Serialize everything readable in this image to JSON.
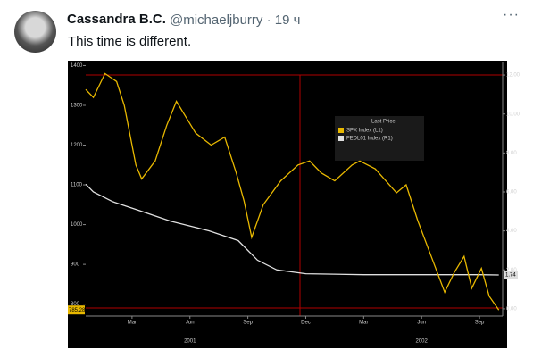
{
  "tweet": {
    "name": "Cassandra B.C.",
    "handle": "@michaeljburry · 19 ч",
    "text": "This time is different."
  },
  "chart_data": {
    "type": "line",
    "series": [
      {
        "name": "SPX Index (L1)",
        "color": "#e8b800",
        "axis": "y",
        "x": [
          -0.4,
          0,
          0.6,
          1.2,
          1.6,
          2.2,
          2.5,
          3.2,
          3.8,
          4.3,
          4.8,
          5.3,
          6.1,
          6.8,
          7.4,
          7.8,
          8.2,
          8.8,
          9.7,
          10.6,
          11.2,
          11.8,
          12.5,
          13.4,
          13.8,
          14.6,
          15.7,
          16.2,
          16.8,
          17.5,
          18.2,
          18.7,
          19.2,
          19.6,
          20.1,
          20.5,
          21.0
        ],
        "values": [
          1340,
          1320,
          1380,
          1360,
          1300,
          1150,
          1115,
          1160,
          1250,
          1310,
          1270,
          1230,
          1200,
          1220,
          1130,
          1060,
          968,
          1050,
          1110,
          1150,
          1160,
          1130,
          1110,
          1150,
          1160,
          1140,
          1080,
          1100,
          1010,
          920,
          830,
          880,
          920,
          840,
          890,
          820,
          785.28
        ]
      },
      {
        "name": "FEDL01 Index (R1)",
        "color": "#e0e0e0",
        "axis": "y2",
        "x": [
          -0.4,
          0,
          1,
          2.5,
          4,
          6,
          7.5,
          8.5,
          9.5,
          11,
          14,
          17,
          20,
          21.0
        ],
        "values": [
          6.4,
          6.0,
          5.5,
          5.0,
          4.5,
          4.0,
          3.5,
          2.5,
          2.0,
          1.8,
          1.75,
          1.75,
          1.75,
          1.74
        ]
      }
    ],
    "legend_title": "Last Price",
    "last_labels": {
      "y": "785.28",
      "y2": "1.74"
    },
    "xlim": [
      -0.4,
      21.2
    ],
    "xticks": [
      {
        "value": 2,
        "label": "Mar"
      },
      {
        "value": 5,
        "label": "Jun"
      },
      {
        "value": 8,
        "label": "Sep"
      },
      {
        "value": 11,
        "label": "Dec"
      },
      {
        "value": 14,
        "label": "Mar"
      },
      {
        "value": 17,
        "label": "Jun"
      },
      {
        "value": 20,
        "label": "Sep"
      }
    ],
    "years": [
      {
        "value": 5,
        "label": "2001"
      },
      {
        "value": 17,
        "label": "2002"
      }
    ],
    "ylim": [
      770,
      1410
    ],
    "yticks": [
      800,
      900,
      1000,
      1100,
      1200,
      1300,
      1400
    ],
    "y2lim": [
      -0.37,
      12.69
    ],
    "y2ticks": [
      {
        "value": 0,
        "label": "0.00"
      },
      {
        "value": 2,
        "label": "2.00"
      },
      {
        "value": 4,
        "label": "4.00"
      },
      {
        "value": 6,
        "label": "6.00"
      },
      {
        "value": 8,
        "label": "8.00"
      },
      {
        "value": 10,
        "label": "10.00"
      },
      {
        "value": 12,
        "label": "12.00"
      }
    ]
  }
}
